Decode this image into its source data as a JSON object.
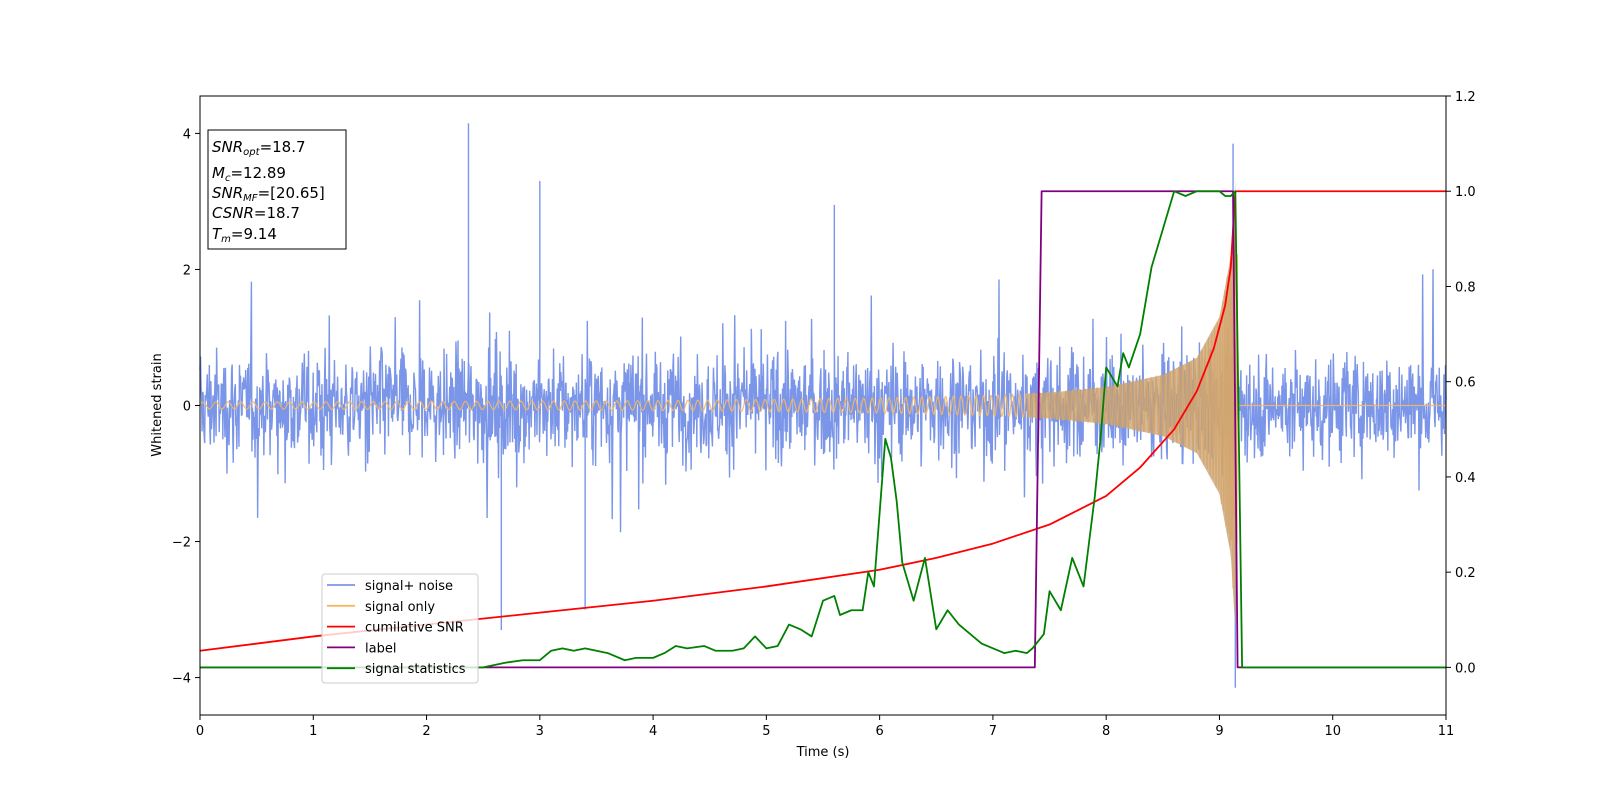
{
  "chart_data": {
    "type": "line",
    "xlabel": "Time (s)",
    "ylabel": "Whitened strain",
    "xlim": [
      0,
      11
    ],
    "ylim_left": [
      -4.55,
      4.55
    ],
    "ylim_right": [
      -0.1,
      1.2
    ],
    "xticks": [
      "0",
      "1",
      "2",
      "3",
      "4",
      "5",
      "6",
      "7",
      "8",
      "9",
      "10",
      "11"
    ],
    "yticks_left": [
      "−4",
      "−2",
      "0",
      "2",
      "4"
    ],
    "yticks_left_values": [
      -4,
      -2,
      0,
      2,
      4
    ],
    "yticks_right": [
      "0.0",
      "0.2",
      "0.4",
      "0.6",
      "0.8",
      "1.0",
      "1.2"
    ],
    "yticks_right_values": [
      0.0,
      0.2,
      0.4,
      0.6,
      0.8,
      1.0,
      1.2
    ],
    "grid": false,
    "legend_position": "lower-left",
    "series": [
      {
        "name": "signal+ noise",
        "axis": "left",
        "color": "#7b96e8",
        "style": "noise",
        "noise_amplitude_typical": 1.3,
        "spikes": [
          [
            2.37,
            4.15
          ],
          [
            9.12,
            3.85
          ],
          [
            9.14,
            -4.15
          ],
          [
            2.66,
            -3.3
          ],
          [
            3.0,
            3.3
          ],
          [
            3.4,
            -3.0
          ],
          [
            5.6,
            2.95
          ]
        ]
      },
      {
        "name": "signal only",
        "axis": "left",
        "color": "#f5b760",
        "style": "chirp",
        "merger_time": 9.14,
        "envelope": {
          "x": [
            0,
            2,
            4,
            5,
            6,
            7,
            7.5,
            8,
            8.5,
            8.8,
            9.0,
            9.1,
            9.14,
            9.2,
            11
          ],
          "y": [
            0.05,
            0.06,
            0.07,
            0.09,
            0.11,
            0.15,
            0.19,
            0.27,
            0.45,
            0.7,
            1.3,
            2.2,
            3.3,
            0.0,
            0.0
          ]
        }
      },
      {
        "name": "cumilative SNR",
        "axis": "right",
        "color": "#ff0000",
        "x": [
          0,
          1,
          2,
          3,
          4,
          5,
          6,
          6.5,
          7,
          7.5,
          8,
          8.3,
          8.6,
          8.8,
          8.95,
          9.05,
          9.1,
          9.14,
          11
        ],
        "y": [
          0.035,
          0.065,
          0.09,
          0.115,
          0.14,
          0.17,
          0.205,
          0.23,
          0.26,
          0.3,
          0.36,
          0.42,
          0.5,
          0.58,
          0.67,
          0.76,
          0.84,
          1.0,
          1.0
        ]
      },
      {
        "name": "label",
        "axis": "right",
        "color": "#800080",
        "x": [
          0,
          7.37,
          7.43,
          9.12,
          9.16,
          11
        ],
        "y": [
          0.0,
          0.0,
          1.0,
          1.0,
          0.0,
          0.0
        ]
      },
      {
        "name": "signal statistics",
        "axis": "right",
        "color": "#008000",
        "x": [
          0,
          2.5,
          2.7,
          2.85,
          3.0,
          3.1,
          3.2,
          3.3,
          3.4,
          3.5,
          3.6,
          3.75,
          3.85,
          4.0,
          4.1,
          4.2,
          4.3,
          4.45,
          4.55,
          4.7,
          4.8,
          4.9,
          5.0,
          5.1,
          5.2,
          5.3,
          5.4,
          5.5,
          5.6,
          5.65,
          5.75,
          5.85,
          5.9,
          5.95,
          6.05,
          6.1,
          6.15,
          6.2,
          6.3,
          6.4,
          6.5,
          6.6,
          6.7,
          6.8,
          6.9,
          7.0,
          7.1,
          7.2,
          7.3,
          7.35,
          7.45,
          7.5,
          7.6,
          7.7,
          7.8,
          7.9,
          7.95,
          8.0,
          8.1,
          8.15,
          8.2,
          8.3,
          8.4,
          8.5,
          8.6,
          8.7,
          8.8,
          9.0,
          9.05,
          9.1,
          9.14,
          9.2,
          9.3,
          11
        ],
        "y": [
          0.0,
          0.0,
          0.01,
          0.015,
          0.015,
          0.035,
          0.04,
          0.035,
          0.04,
          0.035,
          0.03,
          0.015,
          0.02,
          0.02,
          0.03,
          0.045,
          0.04,
          0.045,
          0.035,
          0.035,
          0.04,
          0.065,
          0.04,
          0.045,
          0.09,
          0.08,
          0.065,
          0.14,
          0.15,
          0.11,
          0.12,
          0.12,
          0.2,
          0.17,
          0.48,
          0.44,
          0.35,
          0.22,
          0.14,
          0.23,
          0.08,
          0.12,
          0.09,
          0.07,
          0.05,
          0.04,
          0.03,
          0.035,
          0.03,
          0.04,
          0.07,
          0.16,
          0.12,
          0.23,
          0.17,
          0.36,
          0.48,
          0.63,
          0.59,
          0.66,
          0.63,
          0.7,
          0.84,
          0.92,
          1.0,
          0.99,
          1.0,
          1.0,
          0.99,
          0.99,
          1.0,
          0.0,
          0.0,
          0.0
        ]
      }
    ],
    "annotation": {
      "lines": [
        {
          "var": "SNR",
          "sub": "opt",
          "value": "=18.7"
        },
        {
          "var": "M",
          "sub": "c",
          "value": "=12.89"
        },
        {
          "var": "SNR",
          "sub": "MF",
          "value": "=[20.65]"
        },
        {
          "var": "CSNR",
          "sub": "",
          "value": "=18.7"
        },
        {
          "var": "T",
          "sub": "m",
          "value": "=9.14"
        }
      ]
    }
  }
}
